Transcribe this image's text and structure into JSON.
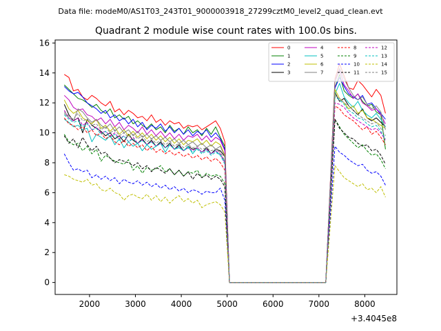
{
  "header": {
    "data_file": "Data file: modeM0/AS1T03_243T01_9000003918_27299cztM0_level2_quad_clean.evt"
  },
  "chart_data": {
    "type": "line",
    "title": "Quadrant 2 module wise count rates with 100.0s bins.",
    "xlabel": "",
    "ylabel": "",
    "x_offset_label": "+3.4045e8",
    "xlim": [
      1250,
      8700
    ],
    "ylim": [
      -0.8,
      16.2
    ],
    "xticks": [
      2000,
      3000,
      4000,
      5000,
      6000,
      7000,
      8000
    ],
    "xtick_labels": [
      "2000",
      "3000",
      "4000",
      "5000",
      "6000",
      "7000",
      "8000"
    ],
    "yticks": [
      0,
      2,
      4,
      6,
      8,
      10,
      12,
      14,
      16
    ],
    "ytick_labels": [
      "0",
      "2",
      "4",
      "6",
      "8",
      "10",
      "12",
      "14",
      "16"
    ],
    "legend_position": "top-right",
    "segments": [
      {
        "x_start": 1450,
        "x_end": 4950,
        "step": 100,
        "gap_value": 0
      },
      {
        "x_start": 7350,
        "x_end": 8450,
        "step": 100
      }
    ],
    "gap_range": [
      5050,
      7150
    ],
    "series": [
      {
        "name": "0",
        "color": "#ff0000",
        "dashed": false,
        "values": [
          13.9,
          13.7,
          12.8,
          12.9,
          12.4,
          12.2,
          12.5,
          12.3,
          12.0,
          11.8,
          12.1,
          11.4,
          11.6,
          11.2,
          11.5,
          11.3,
          11.0,
          11.1,
          10.8,
          11.2,
          10.7,
          10.9,
          10.5,
          10.8,
          10.6,
          10.7,
          10.3,
          10.5,
          10.4,
          10.5,
          10.2,
          10.4,
          10.6,
          10.8,
          10.3,
          9.4
        ],
        "values2": [
          13.6,
          14.6,
          13.8,
          13.0,
          12.9,
          13.5,
          13.2,
          12.8,
          12.4,
          12.9,
          12.5,
          11.3
        ]
      },
      {
        "name": "1",
        "color": "#008000",
        "dashed": false,
        "values": [
          13.2,
          12.9,
          12.6,
          12.3,
          12.2,
          12.0,
          11.7,
          11.9,
          11.5,
          11.3,
          11.6,
          11.0,
          11.2,
          10.9,
          11.1,
          10.6,
          10.8,
          10.5,
          10.3,
          10.6,
          10.2,
          10.4,
          10.0,
          10.5,
          10.1,
          10.3,
          9.9,
          10.4,
          10.0,
          10.2,
          9.8,
          10.3,
          9.9,
          10.4,
          9.7,
          9.1
        ],
        "values2": [
          13.0,
          13.9,
          12.8,
          12.5,
          12.3,
          12.6,
          12.1,
          11.8,
          11.9,
          11.4,
          11.2,
          8.9
        ]
      },
      {
        "name": "2",
        "color": "#0000ff",
        "dashed": false,
        "values": [
          13.1,
          12.8,
          12.6,
          12.7,
          12.4,
          12.0,
          11.8,
          11.6,
          11.3,
          11.5,
          11.0,
          11.2,
          10.8,
          11.0,
          10.6,
          10.9,
          10.4,
          10.7,
          10.2,
          10.5,
          10.3,
          10.6,
          10.1,
          10.4,
          10.0,
          10.3,
          9.9,
          10.2,
          9.8,
          10.1,
          9.9,
          10.2,
          9.7,
          10.0,
          9.6,
          8.9
        ],
        "values2": [
          13.0,
          13.7,
          13.1,
          12.6,
          12.4,
          12.2,
          12.5,
          11.9,
          12.0,
          11.6,
          11.3,
          10.9
        ]
      },
      {
        "name": "3",
        "color": "#000000",
        "dashed": false,
        "values": [
          11.9,
          11.2,
          10.8,
          11.0,
          10.0,
          10.9,
          10.5,
          10.3,
          10.1,
          9.8,
          10.0,
          9.6,
          9.8,
          9.4,
          9.9,
          9.5,
          9.3,
          9.6,
          9.2,
          9.5,
          9.1,
          9.4,
          9.0,
          9.3,
          8.9,
          9.2,
          8.8,
          9.1,
          8.9,
          9.0,
          8.7,
          9.0,
          8.6,
          8.9,
          8.8,
          8.4
        ],
        "values2": [
          12.7,
          12.1,
          12.3,
          11.8,
          11.5,
          11.2,
          11.6,
          11.0,
          10.8,
          11.0,
          10.7,
          10.4
        ]
      },
      {
        "name": "4",
        "color": "#bf00bf",
        "dashed": false,
        "values": [
          12.5,
          12.2,
          11.7,
          11.5,
          11.6,
          11.2,
          11.1,
          10.8,
          11.0,
          10.6,
          10.9,
          10.4,
          10.7,
          10.2,
          10.5,
          10.3,
          10.0,
          10.4,
          9.9,
          10.2,
          9.8,
          10.1,
          9.7,
          10.0,
          9.6,
          9.9,
          9.5,
          9.8,
          9.7,
          9.9,
          9.5,
          9.8,
          9.4,
          9.7,
          9.5,
          8.8
        ],
        "values2": [
          13.4,
          14.2,
          13.2,
          12.8,
          12.3,
          12.6,
          12.0,
          11.8,
          11.5,
          11.6,
          11.2,
          10.6
        ]
      },
      {
        "name": "5",
        "color": "#00bfbf",
        "dashed": false,
        "values": [
          10.9,
          10.7,
          10.4,
          10.5,
          10.2,
          10.3,
          9.4,
          9.9,
          9.7,
          9.5,
          9.8,
          9.2,
          9.6,
          9.0,
          9.4,
          9.1,
          9.3,
          8.8,
          9.2,
          8.9,
          9.1,
          9.3,
          8.7,
          9.2,
          8.9,
          9.0,
          8.8,
          9.1,
          8.6,
          9.0,
          8.7,
          8.9,
          8.6,
          8.8,
          8.5,
          8.1
        ],
        "values2": [
          12.6,
          13.3,
          12.4,
          12.0,
          11.7,
          12.1,
          11.5,
          11.2,
          11.0,
          11.3,
          10.9,
          10.4
        ]
      },
      {
        "name": "6",
        "color": "#bfbf00",
        "dashed": false,
        "values": [
          12.2,
          11.6,
          11.3,
          11.5,
          11.0,
          10.8,
          10.6,
          10.9,
          10.3,
          10.5,
          10.1,
          10.4,
          9.9,
          10.2,
          9.8,
          10.1,
          9.7,
          10.0,
          9.6,
          9.9,
          9.5,
          9.8,
          9.4,
          9.7,
          9.3,
          9.6,
          9.2,
          9.5,
          9.4,
          9.6,
          9.2,
          9.5,
          9.1,
          9.4,
          9.2,
          8.5
        ],
        "values2": [
          12.9,
          12.3,
          12.0,
          11.6,
          11.8,
          11.3,
          11.5,
          11.0,
          10.9,
          10.7,
          10.5,
          10.3
        ]
      },
      {
        "name": "7",
        "color": "#808080",
        "dashed": false,
        "values": [
          11.3,
          11.0,
          10.8,
          11.6,
          11.4,
          11.0,
          10.7,
          10.9,
          10.5,
          10.3,
          10.6,
          10.1,
          10.4,
          10.0,
          10.2,
          9.8,
          10.1,
          9.7,
          9.9,
          9.6,
          9.8,
          9.5,
          9.7,
          9.4,
          9.6,
          9.3,
          9.5,
          9.2,
          9.4,
          9.1,
          9.3,
          9.0,
          9.2,
          8.9,
          9.1,
          8.4
        ],
        "values2": [
          13.5,
          14.3,
          13.6,
          13.0,
          12.5,
          12.2,
          12.4,
          11.9,
          11.6,
          11.8,
          11.4,
          10.2
        ]
      },
      {
        "name": "8",
        "color": "#ff0000",
        "dashed": true,
        "values": [
          11.0,
          10.6,
          10.5,
          10.2,
          10.4,
          10.0,
          10.2,
          9.8,
          10.0,
          9.6,
          9.8,
          9.4,
          9.2,
          9.5,
          9.1,
          9.3,
          9.0,
          9.2,
          8.8,
          9.1,
          8.7,
          8.9,
          8.6,
          8.8,
          8.5,
          8.7,
          8.4,
          8.6,
          8.3,
          8.5,
          8.2,
          8.4,
          8.1,
          8.3,
          8.0,
          7.5
        ],
        "values2": [
          11.8,
          11.6,
          11.2,
          11.0,
          10.8,
          10.5,
          10.2,
          10.4,
          9.9,
          10.1,
          9.7,
          9.2
        ]
      },
      {
        "name": "9",
        "color": "#008000",
        "dashed": true,
        "values": [
          9.9,
          9.4,
          9.2,
          9.3,
          8.8,
          9.1,
          8.6,
          8.9,
          8.1,
          8.5,
          8.3,
          8.1,
          8.0,
          7.9,
          8.2,
          7.5,
          7.8,
          7.3,
          7.7,
          7.5,
          7.6,
          7.8,
          7.4,
          7.6,
          7.2,
          7.5,
          7.1,
          7.4,
          7.3,
          7.5,
          7.0,
          7.3,
          7.1,
          7.2,
          7.1,
          6.6
        ],
        "values2": [
          10.9,
          10.4,
          9.9,
          9.6,
          9.3,
          9.0,
          9.2,
          8.8,
          8.5,
          8.6,
          8.2,
          7.6
        ]
      },
      {
        "name": "10",
        "color": "#0000ff",
        "dashed": true,
        "values": [
          8.6,
          8.0,
          7.5,
          7.6,
          7.4,
          7.5,
          7.0,
          7.2,
          6.9,
          7.1,
          6.8,
          7.0,
          6.6,
          6.9,
          6.7,
          6.6,
          6.8,
          6.5,
          6.7,
          6.4,
          6.6,
          6.3,
          6.5,
          6.2,
          6.4,
          6.1,
          6.3,
          6.0,
          6.2,
          6.1,
          5.9,
          6.1,
          6.0,
          6.0,
          6.3,
          5.5
        ],
        "values2": [
          9.1,
          8.7,
          8.5,
          8.2,
          8.0,
          7.8,
          7.9,
          7.5,
          7.3,
          7.4,
          7.1,
          6.5
        ]
      },
      {
        "name": "11",
        "color": "#000000",
        "dashed": true,
        "values": [
          9.8,
          9.3,
          9.6,
          9.0,
          9.7,
          9.2,
          8.8,
          9.1,
          8.6,
          8.7,
          8.3,
          8.0,
          8.2,
          8.1,
          8.0,
          7.8,
          8.0,
          7.6,
          7.8,
          7.4,
          7.7,
          7.5,
          7.3,
          7.6,
          7.2,
          7.5,
          7.1,
          7.4,
          6.9,
          7.3,
          7.0,
          7.2,
          6.9,
          7.1,
          6.9,
          6.4
        ],
        "values2": [
          10.9,
          10.3,
          10.0,
          9.7,
          9.6,
          9.3,
          9.1,
          9.2,
          8.8,
          8.9,
          8.5,
          7.9
        ]
      },
      {
        "name": "12",
        "color": "#bf00bf",
        "dashed": true,
        "values": [
          11.5,
          11.0,
          10.8,
          11.0,
          10.5,
          10.7,
          10.2,
          10.4,
          10.0,
          10.1,
          9.8,
          10.0,
          9.6,
          9.8,
          9.4,
          9.7,
          9.3,
          9.5,
          9.2,
          9.4,
          9.1,
          9.3,
          9.0,
          9.2,
          8.9,
          9.1,
          8.8,
          9.0,
          8.8,
          9.0,
          8.7,
          8.9,
          8.6,
          8.8,
          8.6,
          8.0
        ],
        "values2": [
          12.0,
          11.9,
          11.7,
          11.3,
          11.0,
          10.8,
          10.6,
          10.4,
          10.2,
          10.3,
          10.0,
          9.5
        ]
      },
      {
        "name": "13",
        "color": "#00bfbf",
        "dashed": true,
        "values": [
          11.2,
          10.9,
          10.7,
          10.8,
          10.4,
          10.6,
          10.2,
          10.3,
          9.9,
          10.1,
          9.7,
          9.9,
          9.5,
          9.8,
          9.4,
          9.6,
          9.3,
          9.5,
          9.2,
          9.4,
          9.1,
          9.3,
          9.0,
          9.2,
          8.9,
          9.1,
          8.8,
          9.0,
          8.7,
          8.9,
          8.6,
          8.8,
          8.5,
          8.7,
          8.5,
          7.9
        ],
        "values2": [
          12.4,
          12.2,
          11.9,
          11.5,
          11.3,
          11.0,
          10.9,
          10.6,
          10.4,
          10.5,
          10.1,
          9.6
        ]
      },
      {
        "name": "14",
        "color": "#bfbf00",
        "dashed": true,
        "values": [
          7.2,
          7.1,
          6.9,
          6.8,
          6.7,
          6.9,
          6.5,
          6.6,
          6.2,
          6.1,
          6.3,
          6.0,
          5.9,
          5.5,
          5.8,
          5.9,
          5.7,
          5.6,
          5.9,
          5.5,
          5.8,
          5.4,
          5.7,
          5.3,
          5.6,
          5.8,
          5.4,
          5.6,
          5.3,
          5.5,
          5.0,
          5.2,
          5.3,
          5.4,
          5.2,
          4.7
        ],
        "values2": [
          7.8,
          7.4,
          7.0,
          6.8,
          6.6,
          6.4,
          6.6,
          6.2,
          6.3,
          6.0,
          6.4,
          5.7
        ]
      },
      {
        "name": "15",
        "color": "#808080",
        "dashed": true,
        "values": [
          11.4,
          11.1,
          10.9,
          11.3,
          10.8,
          10.9,
          10.5,
          10.6,
          10.2,
          10.4,
          10.0,
          10.2,
          9.8,
          10.0,
          9.7,
          9.9,
          9.6,
          9.8,
          9.4,
          9.6,
          9.3,
          9.5,
          9.2,
          9.4,
          9.1,
          9.3,
          9.0,
          9.2,
          9.0,
          9.1,
          8.9,
          9.0,
          8.8,
          8.9,
          8.7,
          8.1
        ],
        "values2": [
          12.5,
          12.3,
          12.0,
          11.8,
          11.5,
          11.2,
          11.0,
          10.8,
          10.6,
          10.7,
          10.3,
          9.8
        ]
      }
    ]
  }
}
